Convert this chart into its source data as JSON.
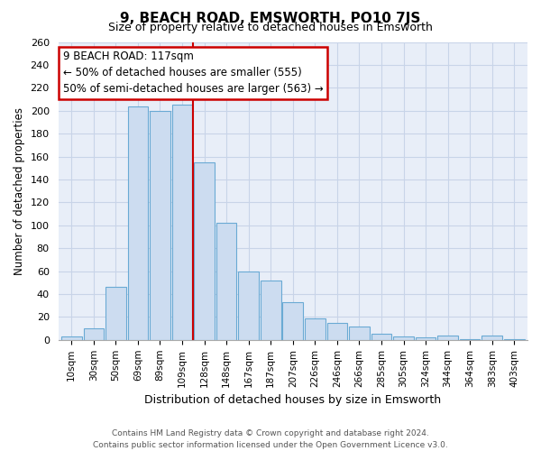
{
  "title": "9, BEACH ROAD, EMSWORTH, PO10 7JS",
  "subtitle": "Size of property relative to detached houses in Emsworth",
  "xlabel": "Distribution of detached houses by size in Emsworth",
  "ylabel": "Number of detached properties",
  "bar_labels": [
    "10sqm",
    "30sqm",
    "50sqm",
    "69sqm",
    "89sqm",
    "109sqm",
    "128sqm",
    "148sqm",
    "167sqm",
    "187sqm",
    "207sqm",
    "226sqm",
    "246sqm",
    "266sqm",
    "285sqm",
    "305sqm",
    "324sqm",
    "344sqm",
    "364sqm",
    "383sqm",
    "403sqm"
  ],
  "bar_values": [
    3,
    10,
    46,
    204,
    200,
    205,
    155,
    102,
    60,
    52,
    33,
    19,
    15,
    12,
    5,
    3,
    2,
    4,
    1,
    4,
    1
  ],
  "bar_color": "#ccdcf0",
  "bar_edge_color": "#6aaad4",
  "vline_color": "#cc0000",
  "vline_bar_index": 6,
  "annotation_title": "9 BEACH ROAD: 117sqm",
  "annotation_line1": "← 50% of detached houses are smaller (555)",
  "annotation_line2": "50% of semi-detached houses are larger (563) →",
  "annotation_box_color": "#ffffff",
  "annotation_box_edge": "#cc0000",
  "ylim": [
    0,
    260
  ],
  "yticks": [
    0,
    20,
    40,
    60,
    80,
    100,
    120,
    140,
    160,
    180,
    200,
    220,
    240,
    260
  ],
  "footer_line1": "Contains HM Land Registry data © Crown copyright and database right 2024.",
  "footer_line2": "Contains public sector information licensed under the Open Government Licence v3.0.",
  "bg_color": "#ffffff",
  "plot_bg_color": "#e8eef8"
}
